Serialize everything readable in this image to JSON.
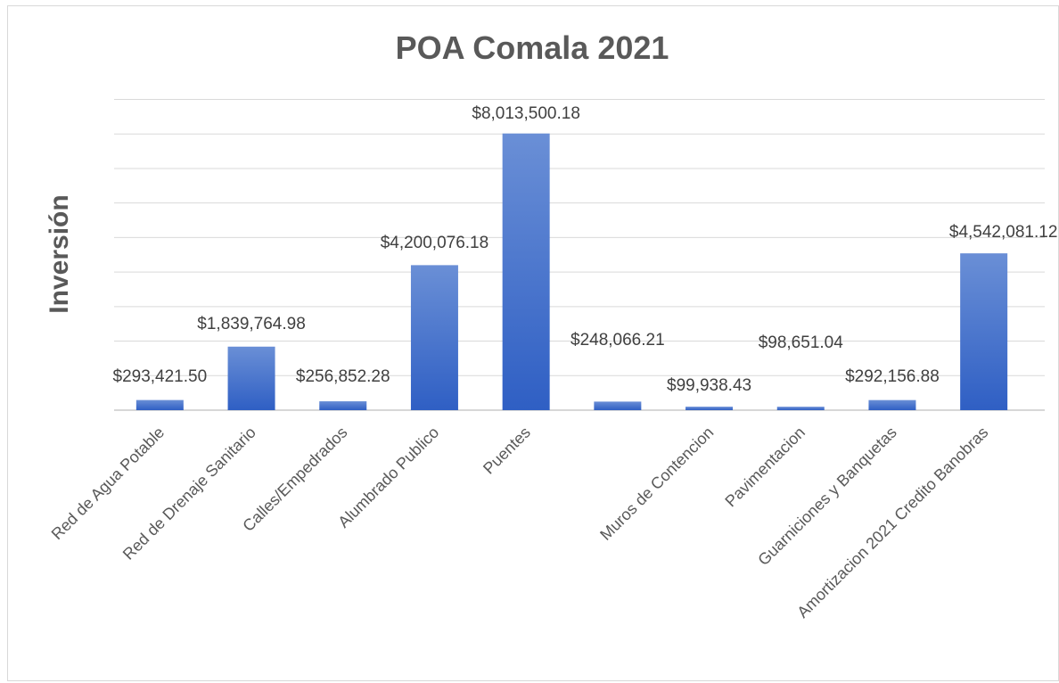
{
  "chart_data": {
    "type": "bar",
    "title": "POA Comala 2021",
    "ylabel": "Inversión",
    "xlabel": "",
    "categories": [
      "Red de Agua Potable",
      "Red de Drenaje Sanitario",
      "Calles/Empedrados",
      "Alumbrado Publico",
      "Puentes",
      "",
      "Muros de Contencion",
      "Pavimentacion",
      "Guarniciones y Banquetas",
      "Amortizacion 2021 Credito Banobras"
    ],
    "values": [
      293421.5,
      1839764.98,
      256852.28,
      4200076.18,
      8013500.18,
      248066.21,
      99938.43,
      98651.04,
      292156.88,
      4542081.12
    ],
    "data_labels": [
      "$293,421.50",
      "$1,839,764.98",
      "$256,852.28",
      "$4,200,076.18",
      "$8,013,500.18",
      "$248,066.21",
      "$99,938.43",
      "$98,651.04",
      "$292,156.88",
      "$4,542,081.12"
    ],
    "ylim": [
      0,
      9000000
    ],
    "y_gridline_step": 1000000,
    "y_tick_labels_shown": false,
    "grid": true,
    "legend": "none",
    "bar_color_top": "#6a8fd6",
    "bar_color_bottom": "#2f5fc4"
  }
}
